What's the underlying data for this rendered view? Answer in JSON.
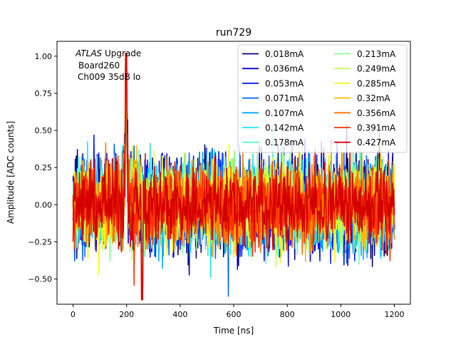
{
  "chart_data": {
    "type": "line",
    "title": "run729",
    "xlabel": "Time [ns]",
    "ylabel": "Amplitude [ADC counts]",
    "xlim": [
      -60,
      1260
    ],
    "ylim": [
      -0.67,
      1.1
    ],
    "x_ticks": [
      0,
      200,
      400,
      600,
      800,
      1000,
      1200
    ],
    "x_tick_labels": [
      "0",
      "200",
      "400",
      "600",
      "800",
      "1000",
      "1200"
    ],
    "y_ticks": [
      -0.5,
      -0.25,
      0.0,
      0.25,
      0.5,
      0.75,
      1.0
    ],
    "y_tick_labels": [
      "−0.50",
      "−0.25",
      "0.00",
      "0.25",
      "0.50",
      "0.75",
      "1.00"
    ],
    "grid": false,
    "legend_position": "top-right",
    "legend_columns": 2,
    "annotation": {
      "atlas": "ATLAS",
      "upgrade": " Upgrade",
      "line2": "Board260",
      "line3": "Ch009 35dB lo"
    },
    "x_range": [
      0,
      1200
    ],
    "sample_count": 600,
    "series": [
      {
        "name": "0.018mA",
        "color": "#00007f",
        "spread": 0.37
      },
      {
        "name": "0.036mA",
        "color": "#0000d4",
        "spread": 0.36
      },
      {
        "name": "0.053mA",
        "color": "#0010ff",
        "spread": 0.35
      },
      {
        "name": "0.071mA",
        "color": "#0060ff",
        "spread": 0.34
      },
      {
        "name": "0.107mA",
        "color": "#00a8ff",
        "spread": 0.34
      },
      {
        "name": "0.142mA",
        "color": "#1ce3f6",
        "spread": 0.33
      },
      {
        "name": "0.178mA",
        "color": "#55ffc2",
        "spread": 0.33
      },
      {
        "name": "0.213mA",
        "color": "#8bff8b",
        "spread": 0.32
      },
      {
        "name": "0.249mA",
        "color": "#c2ff55",
        "spread": 0.32
      },
      {
        "name": "0.285mA",
        "color": "#f6f41d",
        "spread": 0.31
      },
      {
        "name": "0.32mA",
        "color": "#ffb900",
        "spread": 0.31
      },
      {
        "name": "0.356mA",
        "color": "#ff7300",
        "spread": 0.3
      },
      {
        "name": "0.391mA",
        "color": "#ff3000",
        "spread": 0.3
      },
      {
        "name": "0.427mA",
        "color": "#d40000",
        "spread": 0.29
      }
    ],
    "features": {
      "peak": {
        "x": 198,
        "y": 1.02
      },
      "dip": {
        "x": 258,
        "y": -0.64
      }
    }
  }
}
